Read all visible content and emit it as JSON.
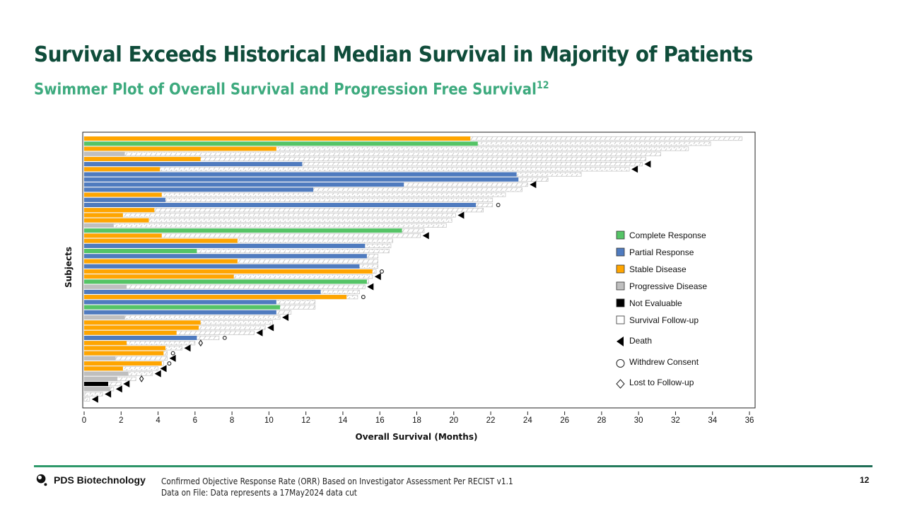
{
  "header": {
    "title": "Survival Exceeds Historical Median Survival in Majority of Patients",
    "subtitle": "Swimmer Plot of Overall Survival and Progression Free Survival",
    "subtitle_sup": "12"
  },
  "footer": {
    "logo_text": "PDS Biotechnology",
    "note_line1": "Confirmed Objective Response Rate (ORR) Based on Investigator Assessment Per RECIST v1.1",
    "note_line2": "Data on File: Data represents  a 17May2024 data cut",
    "page_number": "12"
  },
  "colors": {
    "title": "#0f4c3a",
    "subtitle": "#3daa7e",
    "CR": "#55c466",
    "PR": "#4f7bbf",
    "SD": "#ffa500",
    "PD": "#bfbfbf",
    "NE": "#000000",
    "followup_stroke": "#c8c8c8"
  },
  "chart_data": {
    "type": "swimmer",
    "title": "Swimmer Plot of Overall Survival and Progression Free Survival",
    "xlabel": "Overall Survival (Months)",
    "ylabel": "Subjects",
    "xlim": [
      0,
      36
    ],
    "xticks": [
      0,
      2,
      4,
      6,
      8,
      10,
      12,
      14,
      16,
      18,
      20,
      22,
      24,
      26,
      28,
      30,
      32,
      34,
      36
    ],
    "legend": [
      {
        "key": "CR",
        "label": "Complete Response",
        "shape": "square"
      },
      {
        "key": "PR",
        "label": "Partial Response",
        "shape": "square"
      },
      {
        "key": "SD",
        "label": "Stable Disease",
        "shape": "square"
      },
      {
        "key": "PD",
        "label": "Progressive  Disease",
        "shape": "square"
      },
      {
        "key": "NE",
        "label": "Not Evaluable",
        "shape": "square"
      },
      {
        "key": "FU",
        "label": "Survival  Follow-up",
        "shape": "square-outline"
      },
      {
        "key": "death",
        "label": "Death",
        "shape": "triangle-left"
      },
      {
        "key": "withdrew",
        "label": "Withdrew Consent",
        "shape": "circle"
      },
      {
        "key": "lost",
        "label": "Lost to Follow-up",
        "shape": "diamond"
      }
    ],
    "legend_position": "right-middle",
    "subjects": [
      {
        "response": "SD",
        "pfs": 20.9,
        "os": 35.6,
        "event": null
      },
      {
        "response": "CR",
        "pfs": 21.3,
        "os": 33.9,
        "event": null
      },
      {
        "response": "SD",
        "pfs": 10.4,
        "os": 32.7,
        "event": null
      },
      {
        "response": "PD",
        "pfs": 2.2,
        "os": 31.2,
        "event": null
      },
      {
        "response": "SD",
        "pfs": 6.3,
        "os": 30.4,
        "event": null
      },
      {
        "response": "PR",
        "pfs": 11.8,
        "os": 30.2,
        "event": "death"
      },
      {
        "response": "SD",
        "pfs": 4.1,
        "os": 29.5,
        "event": "death"
      },
      {
        "response": "PR",
        "pfs": 23.4,
        "os": 26.9,
        "event": null
      },
      {
        "response": "PR",
        "pfs": 23.5,
        "os": 25.1,
        "event": null
      },
      {
        "response": "PR",
        "pfs": 17.3,
        "os": 24.0,
        "event": "death"
      },
      {
        "response": "PR",
        "pfs": 12.4,
        "os": 23.7,
        "event": null
      },
      {
        "response": "SD",
        "pfs": 4.2,
        "os": 22.8,
        "event": null
      },
      {
        "response": "PR",
        "pfs": 4.4,
        "os": 22.1,
        "event": null
      },
      {
        "response": "PR",
        "pfs": 21.2,
        "os": 22.1,
        "event": "withdrew"
      },
      {
        "response": "SD",
        "pfs": 3.8,
        "os": 21.6,
        "event": null
      },
      {
        "response": "SD",
        "pfs": 2.1,
        "os": 20.1,
        "event": "death"
      },
      {
        "response": "SD",
        "pfs": 3.5,
        "os": 19.9,
        "event": null
      },
      {
        "response": "PD",
        "pfs": 1.6,
        "os": 19.6,
        "event": null
      },
      {
        "response": "CR",
        "pfs": 17.2,
        "os": 18.4,
        "event": null
      },
      {
        "response": "SD",
        "pfs": 4.2,
        "os": 18.2,
        "event": "death"
      },
      {
        "response": "SD",
        "pfs": 8.3,
        "os": 16.7,
        "event": null
      },
      {
        "response": "PR",
        "pfs": 15.2,
        "os": 16.6,
        "event": null
      },
      {
        "response": "CR",
        "pfs": 6.1,
        "os": 16.5,
        "event": null
      },
      {
        "response": "PR",
        "pfs": 15.3,
        "os": 15.9,
        "event": null
      },
      {
        "response": "SD",
        "pfs": 8.3,
        "os": 15.9,
        "event": null
      },
      {
        "response": "PR",
        "pfs": 14.9,
        "os": 15.9,
        "event": null
      },
      {
        "response": "SD",
        "pfs": 15.6,
        "os": 15.8,
        "event": "withdrew"
      },
      {
        "response": "SD",
        "pfs": 8.1,
        "os": 15.6,
        "event": "death"
      },
      {
        "response": "CR",
        "pfs": 15.3,
        "os": 15.4,
        "event": null
      },
      {
        "response": "PD",
        "pfs": 2.3,
        "os": 15.2,
        "event": "death"
      },
      {
        "response": "PR",
        "pfs": 12.8,
        "os": 14.9,
        "event": null
      },
      {
        "response": "SD",
        "pfs": 14.2,
        "os": 14.8,
        "event": "withdrew"
      },
      {
        "response": "PR",
        "pfs": 10.4,
        "os": 12.5,
        "event": null
      },
      {
        "response": "CR",
        "pfs": 10.6,
        "os": 12.5,
        "event": null
      },
      {
        "response": "PR",
        "pfs": 10.4,
        "os": 11.2,
        "event": null
      },
      {
        "response": "PD",
        "pfs": 2.2,
        "os": 10.6,
        "event": "death"
      },
      {
        "response": "SD",
        "pfs": 6.3,
        "os": 10.2,
        "event": null
      },
      {
        "response": "SD",
        "pfs": 6.2,
        "os": 9.8,
        "event": "death"
      },
      {
        "response": "SD",
        "pfs": 5.0,
        "os": 9.2,
        "event": "death"
      },
      {
        "response": "PR",
        "pfs": 6.1,
        "os": 7.3,
        "event": "withdrew"
      },
      {
        "response": "SD",
        "pfs": 2.3,
        "os": 6.0,
        "event": "lost"
      },
      {
        "response": "SD",
        "pfs": 4.4,
        "os": 5.3,
        "event": "death"
      },
      {
        "response": "SD",
        "pfs": 4.3,
        "os": 4.5,
        "event": "withdrew"
      },
      {
        "response": "PD",
        "pfs": 1.7,
        "os": 4.5,
        "event": "death"
      },
      {
        "response": "SD",
        "pfs": 4.2,
        "os": 4.3,
        "event": "withdrew"
      },
      {
        "response": "SD",
        "pfs": 2.1,
        "os": 4.0,
        "event": "death"
      },
      {
        "response": "PD",
        "pfs": 2.4,
        "os": 3.7,
        "event": "death"
      },
      {
        "response": "PD",
        "pfs": 1.8,
        "os": 2.8,
        "event": "lost"
      },
      {
        "response": "NE",
        "pfs": 1.3,
        "os": 2.0,
        "event": "death"
      },
      {
        "response": "PD",
        "pfs": 1.4,
        "os": 1.6,
        "event": "death"
      },
      {
        "response": null,
        "pfs": 0,
        "os": 1.0,
        "event": "death"
      },
      {
        "response": null,
        "pfs": 0,
        "os": 0.3,
        "event": "death"
      }
    ]
  }
}
